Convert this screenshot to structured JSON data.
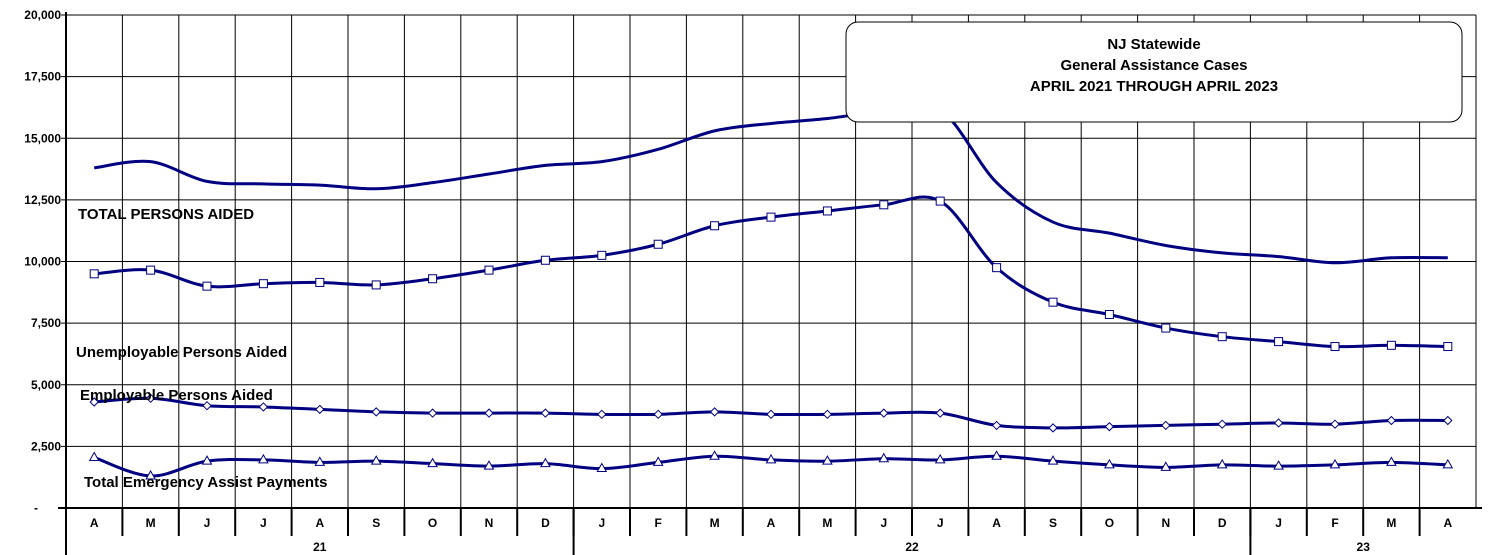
{
  "chart_data": {
    "type": "line",
    "title_lines": [
      "NJ Statewide",
      "General Assistance Cases",
      "APRIL 2021 THROUGH APRIL 2023"
    ],
    "categories": [
      "A",
      "M",
      "J",
      "J",
      "A",
      "S",
      "O",
      "N",
      "D",
      "J",
      "F",
      "M",
      "A",
      "M",
      "J",
      "J",
      "A",
      "S",
      "O",
      "N",
      "D",
      "J",
      "F",
      "M",
      "A"
    ],
    "year_groups": [
      {
        "label": "21",
        "count": 9
      },
      {
        "label": "22",
        "count": 12
      },
      {
        "label": "23",
        "count": 4
      }
    ],
    "y_ticks": [
      "-",
      "2,500",
      "5,000",
      "7,500",
      "10,000",
      "12,500",
      "15,000",
      "17,500",
      "20,000"
    ],
    "ylim": [
      0,
      20000
    ],
    "grid": true,
    "series": [
      {
        "name": "TOTAL PERSONS AIDED",
        "marker": "none",
        "values": [
          13800,
          14050,
          13250,
          13150,
          13100,
          12950,
          13200,
          13550,
          13900,
          14050,
          14550,
          15300,
          15600,
          15800,
          16100,
          16150,
          13200,
          11600,
          11150,
          10650,
          10350,
          10200,
          9950,
          10150,
          10150
        ]
      },
      {
        "name": "Unemployable Persons Aided",
        "marker": "square",
        "values": [
          9500,
          9650,
          9000,
          9100,
          9150,
          9050,
          9300,
          9650,
          10050,
          10250,
          10700,
          11450,
          11800,
          12050,
          12300,
          12450,
          9750,
          8350,
          7850,
          7300,
          6950,
          6750,
          6550,
          6600,
          6550
        ]
      },
      {
        "name": "Employable Persons Aided",
        "marker": "diamond",
        "values": [
          4300,
          4450,
          4150,
          4100,
          4000,
          3900,
          3850,
          3850,
          3850,
          3800,
          3800,
          3900,
          3800,
          3800,
          3850,
          3850,
          3350,
          3250,
          3300,
          3350,
          3400,
          3450,
          3400,
          3550,
          3550
        ]
      },
      {
        "name": "Total Emergency Assist Payments",
        "marker": "triangle",
        "values": [
          2050,
          1300,
          1900,
          1950,
          1850,
          1900,
          1800,
          1700,
          1800,
          1600,
          1850,
          2100,
          1950,
          1900,
          2000,
          1950,
          2100,
          1900,
          1750,
          1650,
          1750,
          1700,
          1750,
          1850,
          1750
        ]
      }
    ],
    "colors": {
      "line": "#000080",
      "grid": "#000000",
      "background": "#ffffff"
    }
  }
}
